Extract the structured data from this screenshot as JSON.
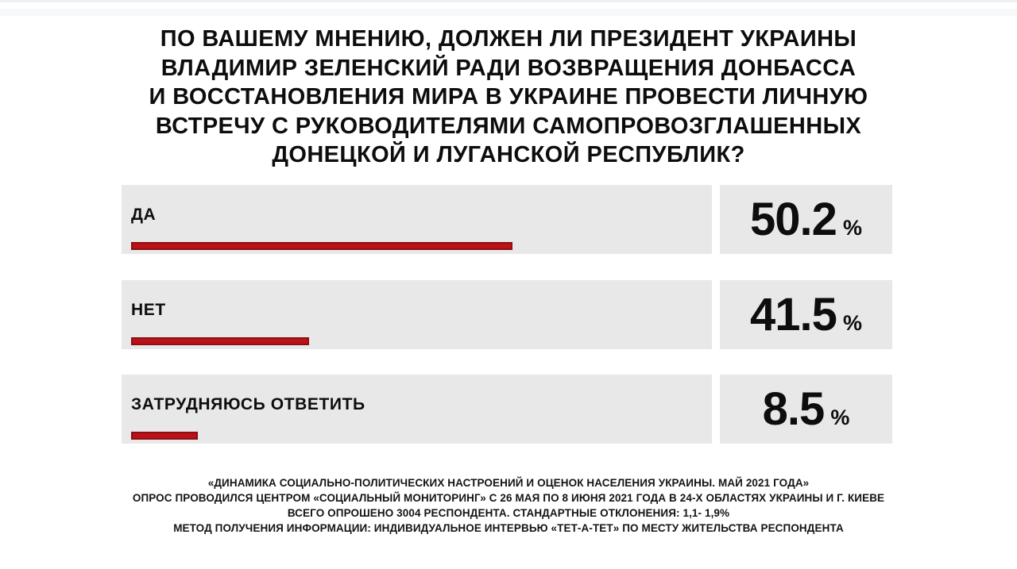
{
  "title": {
    "full": "ПО ВАШЕМУ МНЕНИЮ, ДОЛЖЕН ЛИ ПРЕЗИДЕНТ УКРАИНЫ ВЛАДИМИР ЗЕЛЕНСКИЙ РАДИ ВОЗВРАЩЕНИЯ ДОНБАССА И ВОССТАНОВЛЕНИЯ МИРА В УКРАИНЕ ПРОВЕСТИ ЛИЧНУЮ ВСТРЕЧУ С РУКОВОДИТЕЛЯМИ САМОПРОВОЗГЛАШЕННЫХ ДОНЕЦКОЙ И ЛУГАНСКОЙ РЕСПУБЛИК?",
    "lines": [
      "ПО ВАШЕМУ МНЕНИЮ, ДОЛЖЕН ЛИ ПРЕЗИДЕНТ УКРАИНЫ",
      "ВЛАДИМИР ЗЕЛЕНСКИЙ РАДИ ВОЗВРАЩЕНИЯ ДОНБАССА",
      "И ВОССТАНОВЛЕНИЯ МИРА В УКРАИНЕ ПРОВЕСТИ ЛИЧНУЮ",
      "ВСТРЕЧУ С РУКОВОДИТЕЛЯМИ САМОПРОВОЗГЛАШЕННЫХ",
      "ДОНЕЦКОЙ И ЛУГАНСКОЙ РЕСПУБЛИК?"
    ]
  },
  "chart_data": {
    "type": "bar",
    "orientation": "horizontal",
    "title": "ПО ВАШЕМУ МНЕНИЮ, ДОЛЖЕН ЛИ ПРЕЗИДЕНТ УКРАИНЫ ВЛАДИМИР ЗЕЛЕНСКИЙ РАДИ ВОЗВРАЩЕНИЯ ДОНБАССА И ВОССТАНОВЛЕНИЯ МИРА В УКРАИНЕ ПРОВЕСТИ ЛИЧНУЮ ВСТРЕЧУ С РУКОВОДИТЕЛЯМИ САМОПРОВОЗГЛАШЕННЫХ ДОНЕЦКОЙ И ЛУГАНСКОЙ РЕСПУБЛИК?",
    "categories": [
      "ДА",
      "НЕТ",
      "ЗАТРУДНЯЮСЬ ОТВЕТИТЬ"
    ],
    "values": [
      50.2,
      41.5,
      8.5
    ],
    "unit": "%",
    "grid": false,
    "legend": false,
    "bars": [
      {
        "label": "ДА",
        "value": 50.2,
        "display_value": "50.2",
        "percent_sign": "%",
        "drawn_width_pct": 64.0
      },
      {
        "label": "НЕТ",
        "value": 41.5,
        "display_value": "41.5",
        "percent_sign": "%",
        "drawn_width_pct": 29.6
      },
      {
        "label": "ЗАТРУДНЯЮСЬ ОТВЕТИТЬ",
        "value": 8.5,
        "display_value": "8.5",
        "percent_sign": "%",
        "drawn_width_pct": 10.8
      }
    ],
    "colors": {
      "bar_fill": "#bb1217",
      "bar_border": "#8c0f13",
      "track_background": "#e8e8e8",
      "text": "#0d0d0d",
      "page_background": "#ffffff"
    }
  },
  "footer": {
    "lines": [
      "«ДИНАМИКА СОЦИАЛЬНО-ПОЛИТИЧЕСКИХ НАСТРОЕНИЙ И ОЦЕНОК НАСЕЛЕНИЯ УКРАИНЫ. МАЙ 2021 ГОДА»",
      "ОПРОС ПРОВОДИЛСЯ ЦЕНТРОМ «СОЦИАЛЬНЫЙ МОНИТОРИНГ» С 26 МАЯ ПО 8 ИЮНЯ 2021 ГОДА В 24-Х ОБЛАСТЯХ УКРАИНЫ И Г. КИЕВЕ",
      "ВСЕГО ОПРОШЕНО 3004 РЕСПОНДЕНТА. СТАНДАРТНЫЕ ОТКЛОНЕНИЯ: 1,1- 1,9%",
      "МЕТОД ПОЛУЧЕНИЯ ИНФОРМАЦИИ: ИНДИВИДУАЛЬНОЕ ИНТЕРВЬЮ «ТЕТ-А-ТЕТ» ПО МЕСТУ ЖИТЕЛЬСТВА РЕСПОНДЕНТА"
    ]
  }
}
